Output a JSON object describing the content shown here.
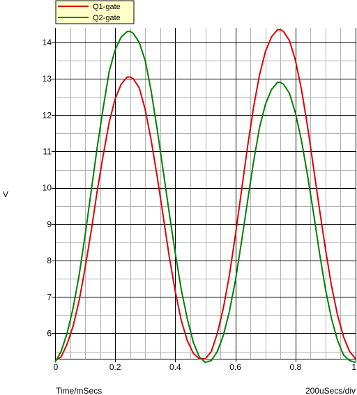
{
  "chart_data": {
    "type": "line",
    "title": "",
    "xlabel": "Time/mSecs",
    "ylabel": "V",
    "scale_label": "200uSecs/div",
    "xlim": [
      0,
      1.0
    ],
    "ylim": [
      5.3,
      14.4
    ],
    "x_ticks": [
      0,
      0.2,
      0.4,
      0.6,
      0.8,
      1
    ],
    "x_tick_labels": [
      "0",
      "0.2",
      "0.4",
      "0.6",
      "0.8",
      "1"
    ],
    "y_ticks": [
      6,
      7,
      8,
      9,
      10,
      11,
      12,
      13,
      14
    ],
    "y_tick_labels": [
      "6",
      "7",
      "8",
      "9",
      "10",
      "11",
      "12",
      "13",
      "14"
    ],
    "grid": true,
    "legend_position": "top-left",
    "colors": {
      "grid_major": "#000000",
      "grid_minor": "#b0b0b0",
      "background": "#ffffff",
      "legend_bg": "#ffffc8"
    },
    "series": [
      {
        "name": "Q1-gate",
        "color": "#e00000",
        "x": [
          0,
          0.02,
          0.04,
          0.06,
          0.08,
          0.1,
          0.12,
          0.14,
          0.16,
          0.18,
          0.2,
          0.22,
          0.24,
          0.25,
          0.26,
          0.28,
          0.3,
          0.32,
          0.34,
          0.36,
          0.38,
          0.4,
          0.42,
          0.44,
          0.46,
          0.48,
          0.5,
          0.52,
          0.54,
          0.56,
          0.58,
          0.6,
          0.62,
          0.64,
          0.66,
          0.68,
          0.7,
          0.72,
          0.74,
          0.75,
          0.76,
          0.78,
          0.8,
          0.82,
          0.84,
          0.86,
          0.88,
          0.9,
          0.92,
          0.94,
          0.96,
          0.98,
          1.0
        ],
        "values": [
          5.25,
          5.35,
          5.7,
          6.2,
          6.9,
          7.8,
          8.8,
          9.9,
          10.9,
          11.8,
          12.45,
          12.85,
          13.05,
          13.05,
          13.0,
          12.75,
          12.15,
          11.3,
          10.3,
          9.2,
          8.1,
          7.15,
          6.35,
          5.8,
          5.45,
          5.3,
          5.3,
          5.5,
          6.0,
          6.7,
          7.6,
          8.7,
          9.9,
          11.1,
          12.2,
          13.1,
          13.75,
          14.15,
          14.35,
          14.35,
          14.3,
          14.05,
          13.5,
          12.7,
          11.7,
          10.55,
          9.4,
          8.3,
          7.3,
          6.5,
          5.9,
          5.5,
          5.3
        ]
      },
      {
        "name": "Q2-gate",
        "color": "#008000",
        "x": [
          0,
          0.02,
          0.04,
          0.06,
          0.08,
          0.1,
          0.12,
          0.14,
          0.16,
          0.18,
          0.2,
          0.22,
          0.24,
          0.25,
          0.26,
          0.28,
          0.3,
          0.32,
          0.34,
          0.36,
          0.38,
          0.4,
          0.42,
          0.44,
          0.46,
          0.48,
          0.5,
          0.52,
          0.54,
          0.56,
          0.58,
          0.6,
          0.62,
          0.64,
          0.66,
          0.68,
          0.7,
          0.72,
          0.74,
          0.75,
          0.76,
          0.78,
          0.8,
          0.82,
          0.84,
          0.86,
          0.88,
          0.9,
          0.92,
          0.94,
          0.96,
          0.98,
          1.0
        ],
        "values": [
          5.2,
          5.5,
          6.0,
          6.7,
          7.6,
          8.7,
          9.9,
          11.1,
          12.2,
          13.2,
          13.8,
          14.15,
          14.3,
          14.3,
          14.25,
          14.0,
          13.5,
          12.65,
          11.6,
          10.45,
          9.3,
          8.2,
          7.2,
          6.4,
          5.75,
          5.35,
          5.2,
          5.25,
          5.5,
          5.95,
          6.6,
          7.45,
          8.5,
          9.6,
          10.7,
          11.65,
          12.3,
          12.7,
          12.9,
          12.9,
          12.85,
          12.6,
          12.05,
          11.3,
          10.35,
          9.3,
          8.2,
          7.2,
          6.4,
          5.8,
          5.4,
          5.25,
          5.2
        ]
      }
    ]
  }
}
